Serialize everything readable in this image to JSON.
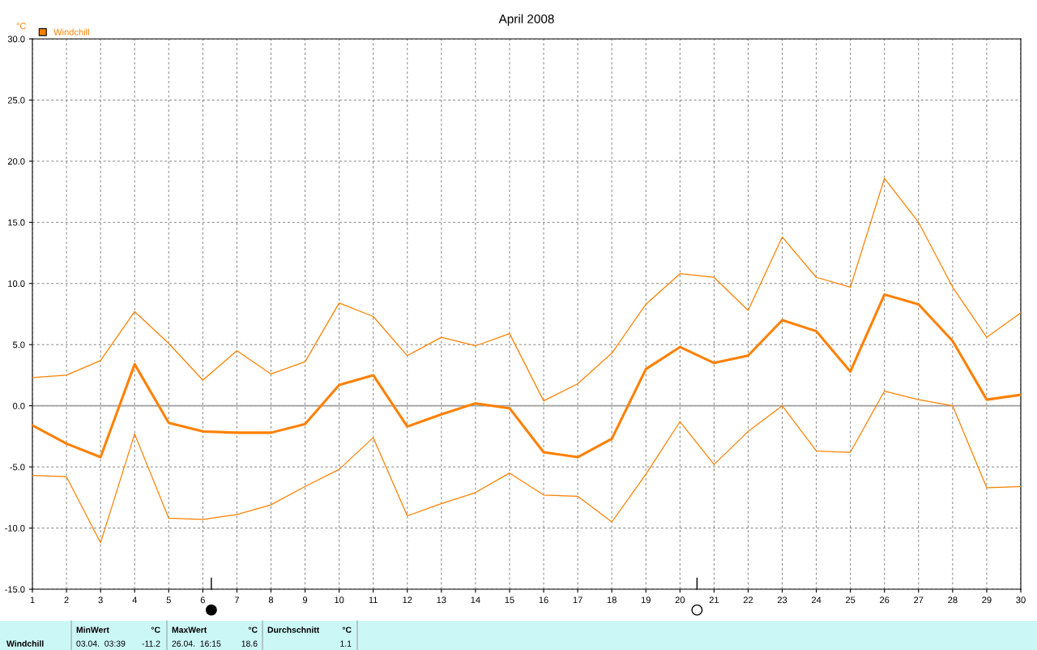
{
  "chart_data": {
    "type": "line",
    "title": "April 2008",
    "ylabel": "°C",
    "x": [
      1,
      2,
      3,
      4,
      5,
      6,
      7,
      8,
      9,
      10,
      11,
      12,
      13,
      14,
      15,
      16,
      17,
      18,
      19,
      20,
      21,
      22,
      23,
      24,
      25,
      26,
      27,
      28,
      29,
      30
    ],
    "series": [
      {
        "color": "#ff8000",
        "values": [
          2.3,
          2.5,
          3.7,
          7.7,
          5.1,
          2.1,
          4.5,
          2.6,
          3.6,
          8.4,
          7.3,
          4.1,
          5.6,
          4.9,
          5.9,
          0.4,
          1.8,
          4.3,
          8.3,
          10.8,
          10.5,
          7.8,
          13.8,
          10.5,
          9.7,
          18.6,
          15.0,
          9.7,
          5.6,
          7.6
        ]
      },
      {
        "name": "Windchill",
        "color": "#ff8000",
        "values": [
          -1.6,
          -3.1,
          -4.2,
          3.4,
          -1.4,
          -2.1,
          -2.2,
          -2.2,
          -1.5,
          1.7,
          2.5,
          -1.7,
          -0.7,
          0.2,
          -0.2,
          -3.8,
          -4.2,
          -2.7,
          3.0,
          4.8,
          3.5,
          4.1,
          7.0,
          6.1,
          2.8,
          9.1,
          8.3,
          5.3,
          0.5,
          0.9
        ]
      },
      {
        "color": "#ff8000",
        "values": [
          -5.7,
          -5.8,
          -11.2,
          -2.3,
          -9.2,
          -9.3,
          -8.9,
          -8.1,
          -6.6,
          -5.2,
          -2.6,
          -9.0,
          -8.0,
          -7.1,
          -5.5,
          -7.3,
          -7.4,
          -9.5,
          -5.6,
          -1.3,
          -4.8,
          -2.1,
          0.0,
          -3.7,
          -3.8,
          1.2,
          0.5,
          0.0,
          -6.7,
          -6.6
        ]
      }
    ],
    "xlim": [
      1,
      30
    ],
    "xticks": [
      1,
      2,
      3,
      4,
      5,
      6,
      7,
      8,
      9,
      10,
      11,
      12,
      13,
      14,
      15,
      16,
      17,
      18,
      19,
      20,
      21,
      22,
      23,
      24,
      25,
      26,
      27,
      28,
      29,
      30
    ],
    "ylim": [
      -15,
      30
    ],
    "yticks": [
      {
        "value": -15,
        "label": "-15.0"
      },
      {
        "value": -10,
        "label": "-10.0"
      },
      {
        "value": -5,
        "label": "-5.0"
      },
      {
        "value": 0,
        "label": "0.0"
      },
      {
        "value": 5,
        "label": "5.0"
      },
      {
        "value": 10,
        "label": "10.0"
      },
      {
        "value": 15,
        "label": "15.0"
      },
      {
        "value": 20,
        "label": "20.0"
      },
      {
        "value": 25,
        "label": "25.0"
      },
      {
        "value": 30,
        "label": "30.0"
      }
    ],
    "ref_lines": [
      {
        "axis": "y",
        "value": 0,
        "color": "#a0a0a0",
        "line_style": "solid"
      }
    ],
    "grid": true,
    "line_style": "solid",
    "marker": "none",
    "legend": "top left",
    "annotations": [
      "Windchill",
      "MinWert",
      "°C",
      "03.04.  03:39",
      "-11.2",
      "MaxWert",
      "°C",
      "26.04.  16:15",
      "18.6",
      "Durchschnitt",
      "°C",
      "1.1"
    ]
  }
}
